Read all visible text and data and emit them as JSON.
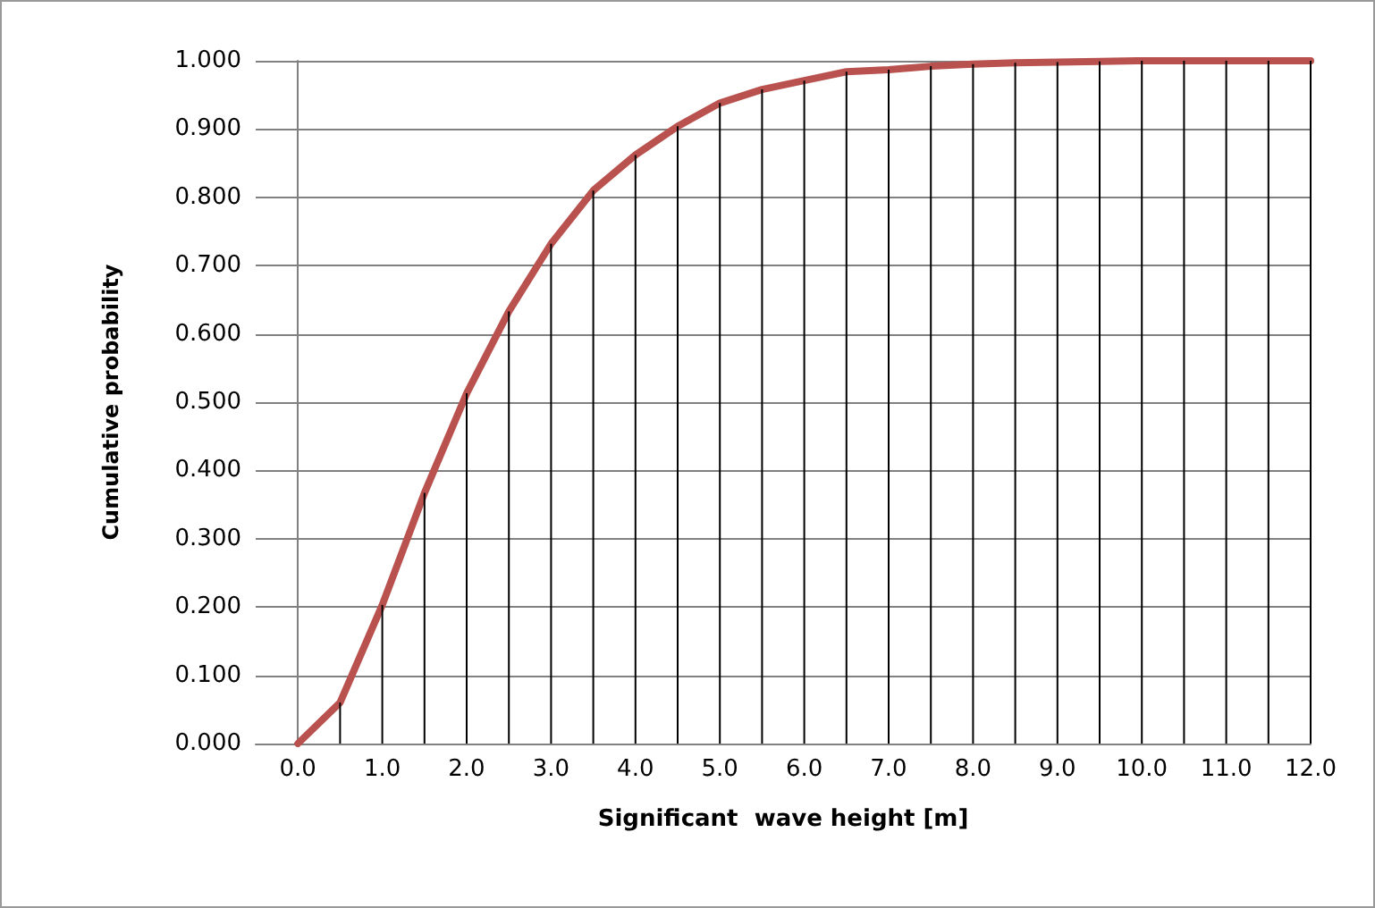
{
  "chart_data": {
    "type": "line",
    "xlabel": "Significant  wave height [m]",
    "ylabel": "Cumulative probability",
    "x": [
      0,
      0.5,
      1,
      1.5,
      2,
      2.5,
      3,
      3.5,
      4,
      4.5,
      5,
      5.5,
      6,
      6.5,
      7,
      7.5,
      8,
      8.5,
      9,
      9.5,
      10,
      10.5,
      11,
      11.5,
      12
    ],
    "series": [
      {
        "type": "bar",
        "color": "#000000",
        "values": [
          0,
          0.06,
          0.203,
          0.367,
          0.513,
          0.633,
          0.732,
          0.81,
          0.862,
          0.904,
          0.938,
          0.958,
          0.971,
          0.984,
          0.987,
          0.992,
          0.995,
          0.997,
          0.998,
          0.999,
          1,
          1,
          1,
          1,
          1
        ]
      },
      {
        "color": "#b9514e",
        "values": [
          0,
          0.06,
          0.203,
          0.367,
          0.513,
          0.633,
          0.732,
          0.81,
          0.862,
          0.904,
          0.938,
          0.958,
          0.971,
          0.984,
          0.987,
          0.992,
          0.995,
          0.997,
          0.998,
          0.999,
          1,
          1,
          1,
          1,
          1
        ]
      }
    ],
    "xlim": [
      -0.5,
      12
    ],
    "xticks": [
      {
        "value": 0,
        "label": "0.0"
      },
      {
        "value": 1,
        "label": "1.0"
      },
      {
        "value": 2,
        "label": "2.0"
      },
      {
        "value": 3,
        "label": "3.0"
      },
      {
        "value": 4,
        "label": "4.0"
      },
      {
        "value": 5,
        "label": "5.0"
      },
      {
        "value": 6,
        "label": "6.0"
      },
      {
        "value": 7,
        "label": "7.0"
      },
      {
        "value": 8,
        "label": "8.0"
      },
      {
        "value": 9,
        "label": "9.0"
      },
      {
        "value": 10,
        "label": "10.0"
      },
      {
        "value": 11,
        "label": "11.0"
      },
      {
        "value": 12,
        "label": "12.0"
      }
    ],
    "ylim": [
      0,
      1
    ],
    "yticks": [
      {
        "value": 0,
        "label": "0.000"
      },
      {
        "value": 0.1,
        "label": "0.100"
      },
      {
        "value": 0.2,
        "label": "0.200"
      },
      {
        "value": 0.3,
        "label": "0.300"
      },
      {
        "value": 0.4,
        "label": "0.400"
      },
      {
        "value": 0.5,
        "label": "0.500"
      },
      {
        "value": 0.6,
        "label": "0.600"
      },
      {
        "value": 0.7,
        "label": "0.700"
      },
      {
        "value": 0.8,
        "label": "0.800"
      },
      {
        "value": 0.9,
        "label": "0.900"
      },
      {
        "value": 1,
        "label": "1.000"
      }
    ],
    "grid": "y",
    "marker": "none",
    "line_style": "solid"
  }
}
